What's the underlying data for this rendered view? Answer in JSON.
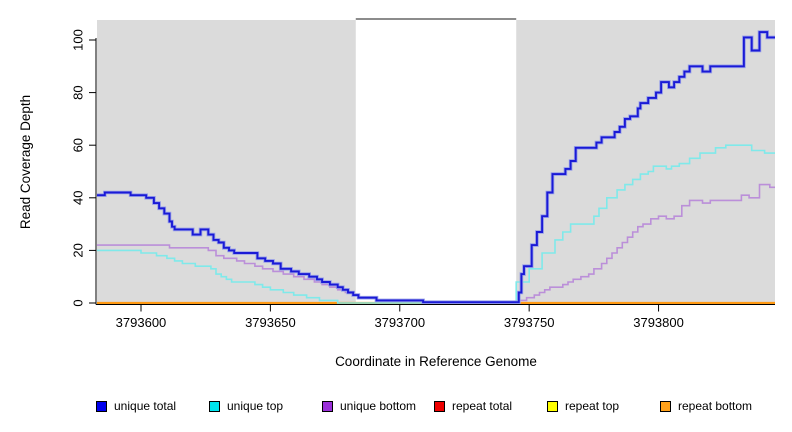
{
  "chart_data": {
    "type": "line",
    "subtype": "step-after",
    "title": "",
    "xlabel": "Coordinate in Reference Genome",
    "ylabel": "Read Coverage Depth",
    "xlim": [
      3793583,
      3793845
    ],
    "ylim": [
      0,
      107.6
    ],
    "x_ticks": [
      3793600,
      3793650,
      3793700,
      3793750,
      3793800
    ],
    "y_ticks": [
      0,
      20,
      40,
      60,
      80,
      100
    ],
    "grid": "off",
    "legend_position": "bottom",
    "plot_background_color": "#DBDBDB",
    "gap_region": {
      "x0": 3793683,
      "x1": 3793745,
      "color": "#FFFFFF",
      "top_border_color": "#8C8C8C"
    },
    "axis_color": "#000000",
    "series": [
      {
        "name": "repeat total",
        "color": "#EE0000",
        "lw": 1.6,
        "points": [
          [
            3793583,
            0
          ]
        ]
      },
      {
        "name": "repeat top",
        "color": "#FFFF00",
        "lw": 1.6,
        "points": [
          [
            3793583,
            0
          ]
        ]
      },
      {
        "name": "repeat bottom",
        "color": "#FF9912",
        "lw": 2.2,
        "points": [
          [
            3793583,
            0
          ]
        ]
      },
      {
        "name": "unique bottom",
        "color": "#BB8FD9",
        "lw": 1.6,
        "points": [
          [
            3793583,
            22
          ],
          [
            3793611,
            21
          ],
          [
            3793626,
            20
          ],
          [
            3793629,
            18
          ],
          [
            3793632,
            17
          ],
          [
            3793637,
            16
          ],
          [
            3793640,
            15
          ],
          [
            3793644,
            14
          ],
          [
            3793647,
            13
          ],
          [
            3793651,
            12
          ],
          [
            3793655,
            11
          ],
          [
            3793659,
            10
          ],
          [
            3793663,
            9
          ],
          [
            3793667,
            8
          ],
          [
            3793670,
            7
          ],
          [
            3793673,
            6
          ],
          [
            3793676,
            5
          ],
          [
            3793679,
            4
          ],
          [
            3793682,
            3
          ],
          [
            3793684,
            2
          ],
          [
            3793691,
            1
          ],
          [
            3793709,
            0.4
          ],
          [
            3793746,
            1
          ],
          [
            3793749,
            2
          ],
          [
            3793752,
            3
          ],
          [
            3793754,
            4
          ],
          [
            3793756,
            5
          ],
          [
            3793758,
            6
          ],
          [
            3793763,
            7
          ],
          [
            3793765,
            8
          ],
          [
            3793767,
            9
          ],
          [
            3793770,
            10
          ],
          [
            3793773,
            11
          ],
          [
            3793775,
            13
          ],
          [
            3793778,
            15
          ],
          [
            3793780,
            17
          ],
          [
            3793782,
            19
          ],
          [
            3793784,
            21
          ],
          [
            3793786,
            23
          ],
          [
            3793788,
            25
          ],
          [
            3793790,
            27
          ],
          [
            3793792,
            29
          ],
          [
            3793794,
            30
          ],
          [
            3793797,
            32
          ],
          [
            3793800,
            33
          ],
          [
            3793803,
            32
          ],
          [
            3793806,
            33
          ],
          [
            3793809,
            37
          ],
          [
            3793812,
            39
          ],
          [
            3793817,
            38
          ],
          [
            3793820,
            39
          ],
          [
            3793832,
            41
          ],
          [
            3793835,
            40
          ],
          [
            3793839,
            45
          ],
          [
            3793843,
            44
          ]
        ]
      },
      {
        "name": "unique top",
        "color": "#7FE9EA",
        "lw": 1.6,
        "points": [
          [
            3793583,
            20
          ],
          [
            3793600,
            19
          ],
          [
            3793606,
            18
          ],
          [
            3793610,
            17
          ],
          [
            3793613,
            16
          ],
          [
            3793616,
            15
          ],
          [
            3793621,
            14
          ],
          [
            3793627,
            13
          ],
          [
            3793629,
            11
          ],
          [
            3793631,
            10
          ],
          [
            3793633,
            9
          ],
          [
            3793635,
            8
          ],
          [
            3793644,
            7
          ],
          [
            3793647,
            6
          ],
          [
            3793650,
            5
          ],
          [
            3793655,
            4
          ],
          [
            3793659,
            3
          ],
          [
            3793664,
            2
          ],
          [
            3793669,
            1
          ],
          [
            3793676,
            0
          ],
          [
            3793745,
            8
          ],
          [
            3793750,
            13
          ],
          [
            3793755,
            19
          ],
          [
            3793760,
            24
          ],
          [
            3793763,
            27
          ],
          [
            3793766,
            30
          ],
          [
            3793775,
            33
          ],
          [
            3793777,
            36
          ],
          [
            3793780,
            40
          ],
          [
            3793784,
            43
          ],
          [
            3793787,
            45
          ],
          [
            3793790,
            47
          ],
          [
            3793793,
            49
          ],
          [
            3793796,
            50
          ],
          [
            3793798,
            52
          ],
          [
            3793803,
            51
          ],
          [
            3793805,
            52
          ],
          [
            3793808,
            53
          ],
          [
            3793812,
            55
          ],
          [
            3793816,
            57
          ],
          [
            3793822,
            59
          ],
          [
            3793826,
            60
          ],
          [
            3793836,
            58
          ],
          [
            3793841,
            57
          ]
        ]
      },
      {
        "name": "unique total",
        "color": "#1A1AD6",
        "halo_color": "#99A0E8",
        "lw": 1.9,
        "halo_lw": 3.6,
        "points": [
          [
            3793583,
            41
          ],
          [
            3793586,
            42
          ],
          [
            3793596,
            41
          ],
          [
            3793602,
            40
          ],
          [
            3793605,
            38
          ],
          [
            3793607,
            36
          ],
          [
            3793609,
            34
          ],
          [
            3793611,
            31
          ],
          [
            3793612,
            29
          ],
          [
            3793613,
            28
          ],
          [
            3793620,
            26
          ],
          [
            3793623,
            28
          ],
          [
            3793626,
            26
          ],
          [
            3793628,
            24
          ],
          [
            3793630,
            23
          ],
          [
            3793632,
            21
          ],
          [
            3793634,
            20
          ],
          [
            3793636,
            19
          ],
          [
            3793645,
            17
          ],
          [
            3793648,
            16
          ],
          [
            3793651,
            15
          ],
          [
            3793654,
            13
          ],
          [
            3793658,
            12
          ],
          [
            3793661,
            11
          ],
          [
            3793665,
            10
          ],
          [
            3793668,
            9
          ],
          [
            3793670,
            8
          ],
          [
            3793673,
            7
          ],
          [
            3793676,
            6
          ],
          [
            3793678,
            5
          ],
          [
            3793680,
            4
          ],
          [
            3793682,
            3
          ],
          [
            3793684,
            2
          ],
          [
            3793691,
            1
          ],
          [
            3793709,
            0.3
          ],
          [
            3793746,
            4
          ],
          [
            3793747,
            11
          ],
          [
            3793748,
            14
          ],
          [
            3793751,
            22
          ],
          [
            3793753,
            27
          ],
          [
            3793755,
            33
          ],
          [
            3793757,
            42
          ],
          [
            3793759,
            49
          ],
          [
            3793764,
            51
          ],
          [
            3793766,
            54
          ],
          [
            3793768,
            59
          ],
          [
            3793776,
            61
          ],
          [
            3793778,
            63
          ],
          [
            3793783,
            65
          ],
          [
            3793785,
            67
          ],
          [
            3793787,
            70
          ],
          [
            3793789,
            71
          ],
          [
            3793792,
            74
          ],
          [
            3793793,
            76
          ],
          [
            3793796,
            78
          ],
          [
            3793799,
            80
          ],
          [
            3793801,
            84
          ],
          [
            3793804,
            82
          ],
          [
            3793806,
            84
          ],
          [
            3793808,
            86
          ],
          [
            3793810,
            88
          ],
          [
            3793812,
            90
          ],
          [
            3793817,
            88
          ],
          [
            3793820,
            90
          ],
          [
            3793833,
            101
          ],
          [
            3793836,
            96
          ],
          [
            3793839,
            103
          ],
          [
            3793842,
            101
          ]
        ]
      }
    ]
  },
  "legend": {
    "swatch_border_color": "#000000",
    "items": [
      {
        "label": "unique total",
        "color": "#0000EE"
      },
      {
        "label": "unique top",
        "color": "#00E5EE"
      },
      {
        "label": "unique bottom",
        "color": "#9B30D9"
      },
      {
        "label": "repeat total",
        "color": "#EE0000"
      },
      {
        "label": "repeat top",
        "color": "#FFFF00"
      },
      {
        "label": "repeat bottom",
        "color": "#FFA11A"
      }
    ]
  }
}
